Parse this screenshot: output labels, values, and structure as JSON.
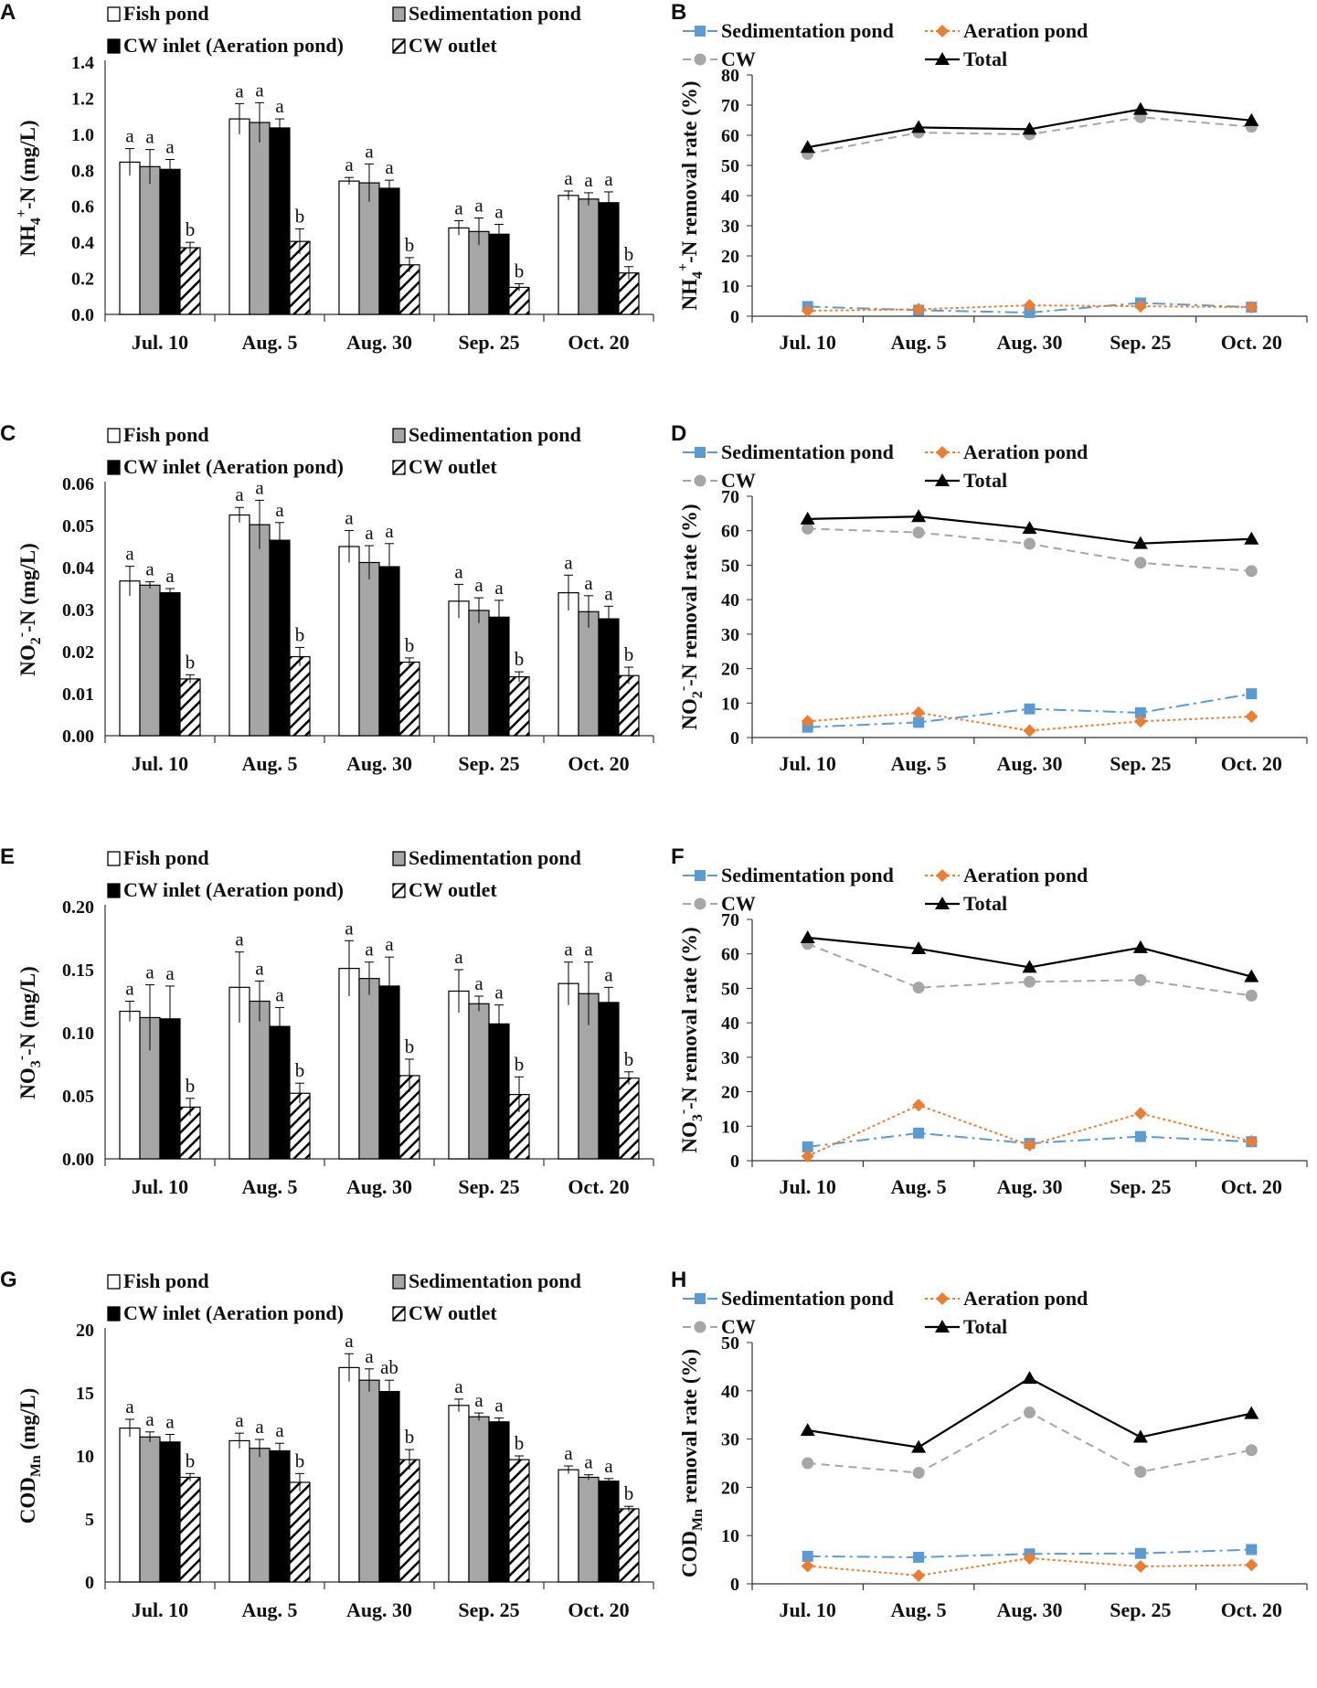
{
  "colors": {
    "sedimentation": "#5B9BD5",
    "aeration": "#ED7D31",
    "cw": "#A6A6A6",
    "total": "#000000",
    "fish_bar": "#FFFFFF",
    "sed_bar": "#A6A6A6",
    "inlet_bar": "#000000"
  },
  "chart_data": [
    {
      "id": "A",
      "panel": "A",
      "type": "bar",
      "ylabel": {
        "main": "NH",
        "sub": "4",
        "sup": "+",
        "rest": "-N  (mg/L)"
      },
      "ylim": [
        0,
        1.4
      ],
      "yticks": [
        0.0,
        0.2,
        0.4,
        0.6,
        0.8,
        1.0,
        1.2,
        1.4
      ],
      "yfmt": 1,
      "categories": [
        "Jul. 10",
        "Aug. 5",
        "Aug. 30",
        "Sep. 25",
        "Oct. 20"
      ],
      "legend": {
        "fish": "Fish pond",
        "sed": "Sedimentation pond",
        "inlet": "CW inlet (Aeration pond)",
        "outlet": "CW outlet"
      },
      "series": [
        {
          "name": "Fish pond",
          "values": [
            0.845,
            1.085,
            0.74,
            0.48,
            0.66
          ],
          "errors": [
            0.075,
            0.085,
            0.02,
            0.04,
            0.025
          ],
          "labels": [
            "a",
            "a",
            "a",
            "a",
            "a"
          ]
        },
        {
          "name": "Sedimentation pond",
          "values": [
            0.82,
            1.065,
            0.73,
            0.46,
            0.64
          ],
          "errors": [
            0.095,
            0.11,
            0.105,
            0.075,
            0.035
          ],
          "labels": [
            "a",
            "a",
            "a",
            "a",
            "a"
          ]
        },
        {
          "name": "CW inlet (Aeration pond)",
          "values": [
            0.805,
            1.035,
            0.7,
            0.445,
            0.62
          ],
          "errors": [
            0.055,
            0.05,
            0.045,
            0.055,
            0.06
          ],
          "labels": [
            "a",
            "a",
            "a",
            "a",
            "a"
          ]
        },
        {
          "name": "CW outlet",
          "values": [
            0.37,
            0.405,
            0.275,
            0.15,
            0.23
          ],
          "errors": [
            0.03,
            0.07,
            0.04,
            0.02,
            0.035
          ],
          "labels": [
            "b",
            "b",
            "b",
            "b",
            "b"
          ]
        }
      ]
    },
    {
      "id": "B",
      "panel": "B",
      "type": "line",
      "ylabel": {
        "main": "NH",
        "sub": "4",
        "sup": "+",
        "rest": "-N removal rate (%)"
      },
      "ylim": [
        0,
        80
      ],
      "yticks": [
        0,
        10,
        20,
        30,
        40,
        50,
        60,
        70,
        80
      ],
      "yfmt": 0,
      "categories": [
        "Jul. 10",
        "Aug. 5",
        "Aug. 30",
        "Sep. 25",
        "Oct. 20"
      ],
      "legend": {
        "sed": "Sedimentation pond",
        "aer": "Aeration pond",
        "cw": "CW",
        "total": "Total"
      },
      "series": [
        {
          "name": "Sedimentation pond",
          "values": [
            3.2,
            2.0,
            1.2,
            4.4,
            3.0
          ]
        },
        {
          "name": "Aeration pond",
          "values": [
            1.8,
            2.3,
            3.6,
            3.3,
            3.0
          ]
        },
        {
          "name": "CW",
          "values": [
            53.8,
            60.9,
            60.3,
            66.0,
            62.8
          ]
        },
        {
          "name": "Total",
          "values": [
            56.0,
            62.6,
            62.0,
            68.6,
            64.9
          ]
        }
      ]
    },
    {
      "id": "C",
      "panel": "C",
      "type": "bar",
      "ylabel": {
        "main": "NO",
        "sub": "2",
        "sup": "-",
        "rest": "-N  (mg/L)"
      },
      "ylim": [
        0,
        0.06
      ],
      "yticks": [
        0.0,
        0.01,
        0.02,
        0.03,
        0.04,
        0.05,
        0.06
      ],
      "yfmt": 2,
      "categories": [
        "Jul. 10",
        "Aug. 5",
        "Aug. 30",
        "Sep. 25",
        "Oct. 20"
      ],
      "legend": {
        "fish": "Fish pond",
        "sed": "Sedimentation pond",
        "inlet": "CW inlet (Aeration pond)",
        "outlet": "CW outlet"
      },
      "series": [
        {
          "name": "Fish pond",
          "values": [
            0.0368,
            0.0525,
            0.045,
            0.032,
            0.034
          ],
          "errors": [
            0.0035,
            0.0018,
            0.0038,
            0.004,
            0.0042
          ],
          "labels": [
            "a",
            "a",
            "a",
            "a",
            "a"
          ]
        },
        {
          "name": "Sedimentation pond",
          "values": [
            0.0358,
            0.0502,
            0.0412,
            0.0298,
            0.0295
          ],
          "errors": [
            0.0008,
            0.0058,
            0.004,
            0.003,
            0.0038
          ],
          "labels": [
            "a",
            "a",
            "a",
            "a",
            "a"
          ]
        },
        {
          "name": "CW inlet (Aeration pond)",
          "values": [
            0.034,
            0.0465,
            0.0402,
            0.0282,
            0.0278
          ],
          "errors": [
            0.001,
            0.0042,
            0.0055,
            0.004,
            0.003
          ],
          "labels": [
            "a",
            "a",
            "a",
            "a",
            "a"
          ]
        },
        {
          "name": "CW outlet",
          "values": [
            0.0135,
            0.0188,
            0.0175,
            0.014,
            0.0143
          ],
          "errors": [
            0.001,
            0.0022,
            0.001,
            0.0012,
            0.002
          ],
          "labels": [
            "b",
            "b",
            "b",
            "b",
            "b"
          ]
        }
      ]
    },
    {
      "id": "D",
      "panel": "D",
      "type": "line",
      "ylabel": {
        "main": "NO",
        "sub": "2",
        "sup": "-",
        "rest": "-N removal rate (%)"
      },
      "ylim": [
        0,
        70
      ],
      "yticks": [
        0,
        10,
        20,
        30,
        40,
        50,
        60,
        70
      ],
      "yfmt": 0,
      "categories": [
        "Jul. 10",
        "Aug. 5",
        "Aug. 30",
        "Sep. 25",
        "Oct. 20"
      ],
      "legend": {
        "sed": "Sedimentation pond",
        "aer": "Aeration pond",
        "cw": "CW",
        "total": "Total"
      },
      "series": [
        {
          "name": "Sedimentation pond",
          "values": [
            3.0,
            4.4,
            8.3,
            7.2,
            12.7
          ]
        },
        {
          "name": "Aeration pond",
          "values": [
            4.7,
            7.2,
            2.0,
            4.7,
            6.1
          ]
        },
        {
          "name": "CW",
          "values": [
            60.6,
            59.5,
            56.2,
            50.7,
            48.3
          ]
        },
        {
          "name": "Total",
          "values": [
            63.4,
            64.1,
            60.7,
            56.3,
            57.6
          ]
        }
      ]
    },
    {
      "id": "E",
      "panel": "E",
      "type": "bar",
      "ylabel": {
        "main": "NO",
        "sub": "3",
        "sup": "-",
        "rest": "-N  (mg/L)"
      },
      "ylim": [
        0,
        0.2
      ],
      "yticks": [
        0.0,
        0.05,
        0.1,
        0.15,
        0.2
      ],
      "yfmt": 2,
      "categories": [
        "Jul. 10",
        "Aug. 5",
        "Aug. 30",
        "Sep. 25",
        "Oct. 20"
      ],
      "legend": {
        "fish": "Fish pond",
        "sed": "Sedimentation pond",
        "inlet": "CW inlet (Aeration pond)",
        "outlet": "CW outlet"
      },
      "series": [
        {
          "name": "Fish pond",
          "values": [
            0.117,
            0.136,
            0.151,
            0.133,
            0.139
          ],
          "errors": [
            0.008,
            0.028,
            0.022,
            0.017,
            0.017
          ],
          "labels": [
            "a",
            "a",
            "a",
            "a",
            "a"
          ]
        },
        {
          "name": "Sedimentation pond",
          "values": [
            0.112,
            0.125,
            0.143,
            0.123,
            0.131
          ],
          "errors": [
            0.026,
            0.016,
            0.013,
            0.006,
            0.025
          ],
          "labels": [
            "a",
            "a",
            "a",
            "a",
            "a"
          ]
        },
        {
          "name": "CW inlet (Aeration pond)",
          "values": [
            0.111,
            0.105,
            0.137,
            0.107,
            0.124
          ],
          "errors": [
            0.026,
            0.015,
            0.023,
            0.015,
            0.012
          ],
          "labels": [
            "a",
            "a",
            "a",
            "a",
            "a"
          ]
        },
        {
          "name": "CW outlet",
          "values": [
            0.041,
            0.052,
            0.066,
            0.051,
            0.064
          ],
          "errors": [
            0.007,
            0.008,
            0.013,
            0.014,
            0.005
          ],
          "labels": [
            "b",
            "b",
            "b",
            "b",
            "b"
          ]
        }
      ]
    },
    {
      "id": "F",
      "panel": "F",
      "type": "line",
      "ylabel": {
        "main": "NO",
        "sub": "3",
        "sup": "-",
        "rest": "-N removal rate (%)"
      },
      "ylim": [
        0,
        70
      ],
      "yticks": [
        0,
        10,
        20,
        30,
        40,
        50,
        60,
        70
      ],
      "yfmt": 0,
      "categories": [
        "Jul. 10",
        "Aug. 5",
        "Aug. 30",
        "Sep. 25",
        "Oct. 20"
      ],
      "legend": {
        "sed": "Sedimentation pond",
        "aer": "Aeration pond",
        "cw": "CW",
        "total": "Total"
      },
      "series": [
        {
          "name": "Sedimentation pond",
          "values": [
            4.0,
            8.0,
            5.0,
            7.0,
            5.5
          ]
        },
        {
          "name": "Aeration pond",
          "values": [
            1.3,
            16.1,
            4.5,
            13.7,
            5.6
          ]
        },
        {
          "name": "CW",
          "values": [
            62.9,
            50.2,
            51.9,
            52.4,
            47.9
          ]
        },
        {
          "name": "Total",
          "values": [
            64.7,
            61.5,
            56.1,
            61.8,
            53.4
          ]
        }
      ]
    },
    {
      "id": "G",
      "panel": "G",
      "type": "bar",
      "ylabel": {
        "main": "COD",
        "sub": "Mn",
        "sup": "",
        "rest": "  (mg/L)"
      },
      "ylim": [
        0,
        20
      ],
      "yticks": [
        0,
        5,
        10,
        15,
        20
      ],
      "yfmt": 0,
      "categories": [
        "Jul. 10",
        "Aug. 5",
        "Aug. 30",
        "Sep. 25",
        "Oct. 20"
      ],
      "legend": {
        "fish": "Fish pond",
        "sed": "Sedimentation pond",
        "inlet": "CW inlet (Aeration pond)",
        "outlet": "CW outlet"
      },
      "series": [
        {
          "name": "Fish pond",
          "values": [
            12.2,
            11.2,
            17.0,
            14.0,
            8.9
          ],
          "errors": [
            0.7,
            0.6,
            1.1,
            0.5,
            0.3
          ],
          "labels": [
            "a",
            "a",
            "a",
            "a",
            "a"
          ]
        },
        {
          "name": "Sedimentation pond",
          "values": [
            11.5,
            10.6,
            16.0,
            13.1,
            8.3
          ],
          "errors": [
            0.4,
            0.7,
            0.9,
            0.3,
            0.2
          ],
          "labels": [
            "a",
            "a",
            "a",
            "a",
            "a"
          ]
        },
        {
          "name": "CW inlet (Aeration pond)",
          "values": [
            11.1,
            10.4,
            15.1,
            12.7,
            8.0
          ],
          "errors": [
            0.6,
            0.6,
            0.9,
            0.3,
            0.2
          ],
          "labels": [
            "a",
            "a",
            "ab",
            "a",
            "a"
          ]
        },
        {
          "name": "CW outlet",
          "values": [
            8.3,
            7.9,
            9.7,
            9.7,
            5.8
          ],
          "errors": [
            0.3,
            0.7,
            0.8,
            0.3,
            0.2
          ],
          "labels": [
            "b",
            "b",
            "b",
            "b",
            "b"
          ]
        }
      ]
    },
    {
      "id": "H",
      "panel": "H",
      "type": "line",
      "ylabel": {
        "main": "COD",
        "sub": "Mn",
        "sup": "",
        "rest": " removal rate (%)"
      },
      "ylim": [
        0,
        50
      ],
      "yticks": [
        0,
        10,
        20,
        30,
        40,
        50
      ],
      "yfmt": 0,
      "categories": [
        "Jul. 10",
        "Aug. 5",
        "Aug. 30",
        "Sep. 25",
        "Oct. 20"
      ],
      "legend": {
        "sed": "Sedimentation pond",
        "aer": "Aeration pond",
        "cw": "CW",
        "total": "Total"
      },
      "series": [
        {
          "name": "Sedimentation pond",
          "values": [
            5.7,
            5.5,
            6.2,
            6.3,
            7.1
          ]
        },
        {
          "name": "Aeration pond",
          "values": [
            3.7,
            1.7,
            5.3,
            3.6,
            3.9
          ]
        },
        {
          "name": "CW",
          "values": [
            25.0,
            23.0,
            35.5,
            23.2,
            27.7
          ]
        },
        {
          "name": "Total",
          "values": [
            31.8,
            28.3,
            42.6,
            30.4,
            35.3
          ]
        }
      ]
    }
  ]
}
